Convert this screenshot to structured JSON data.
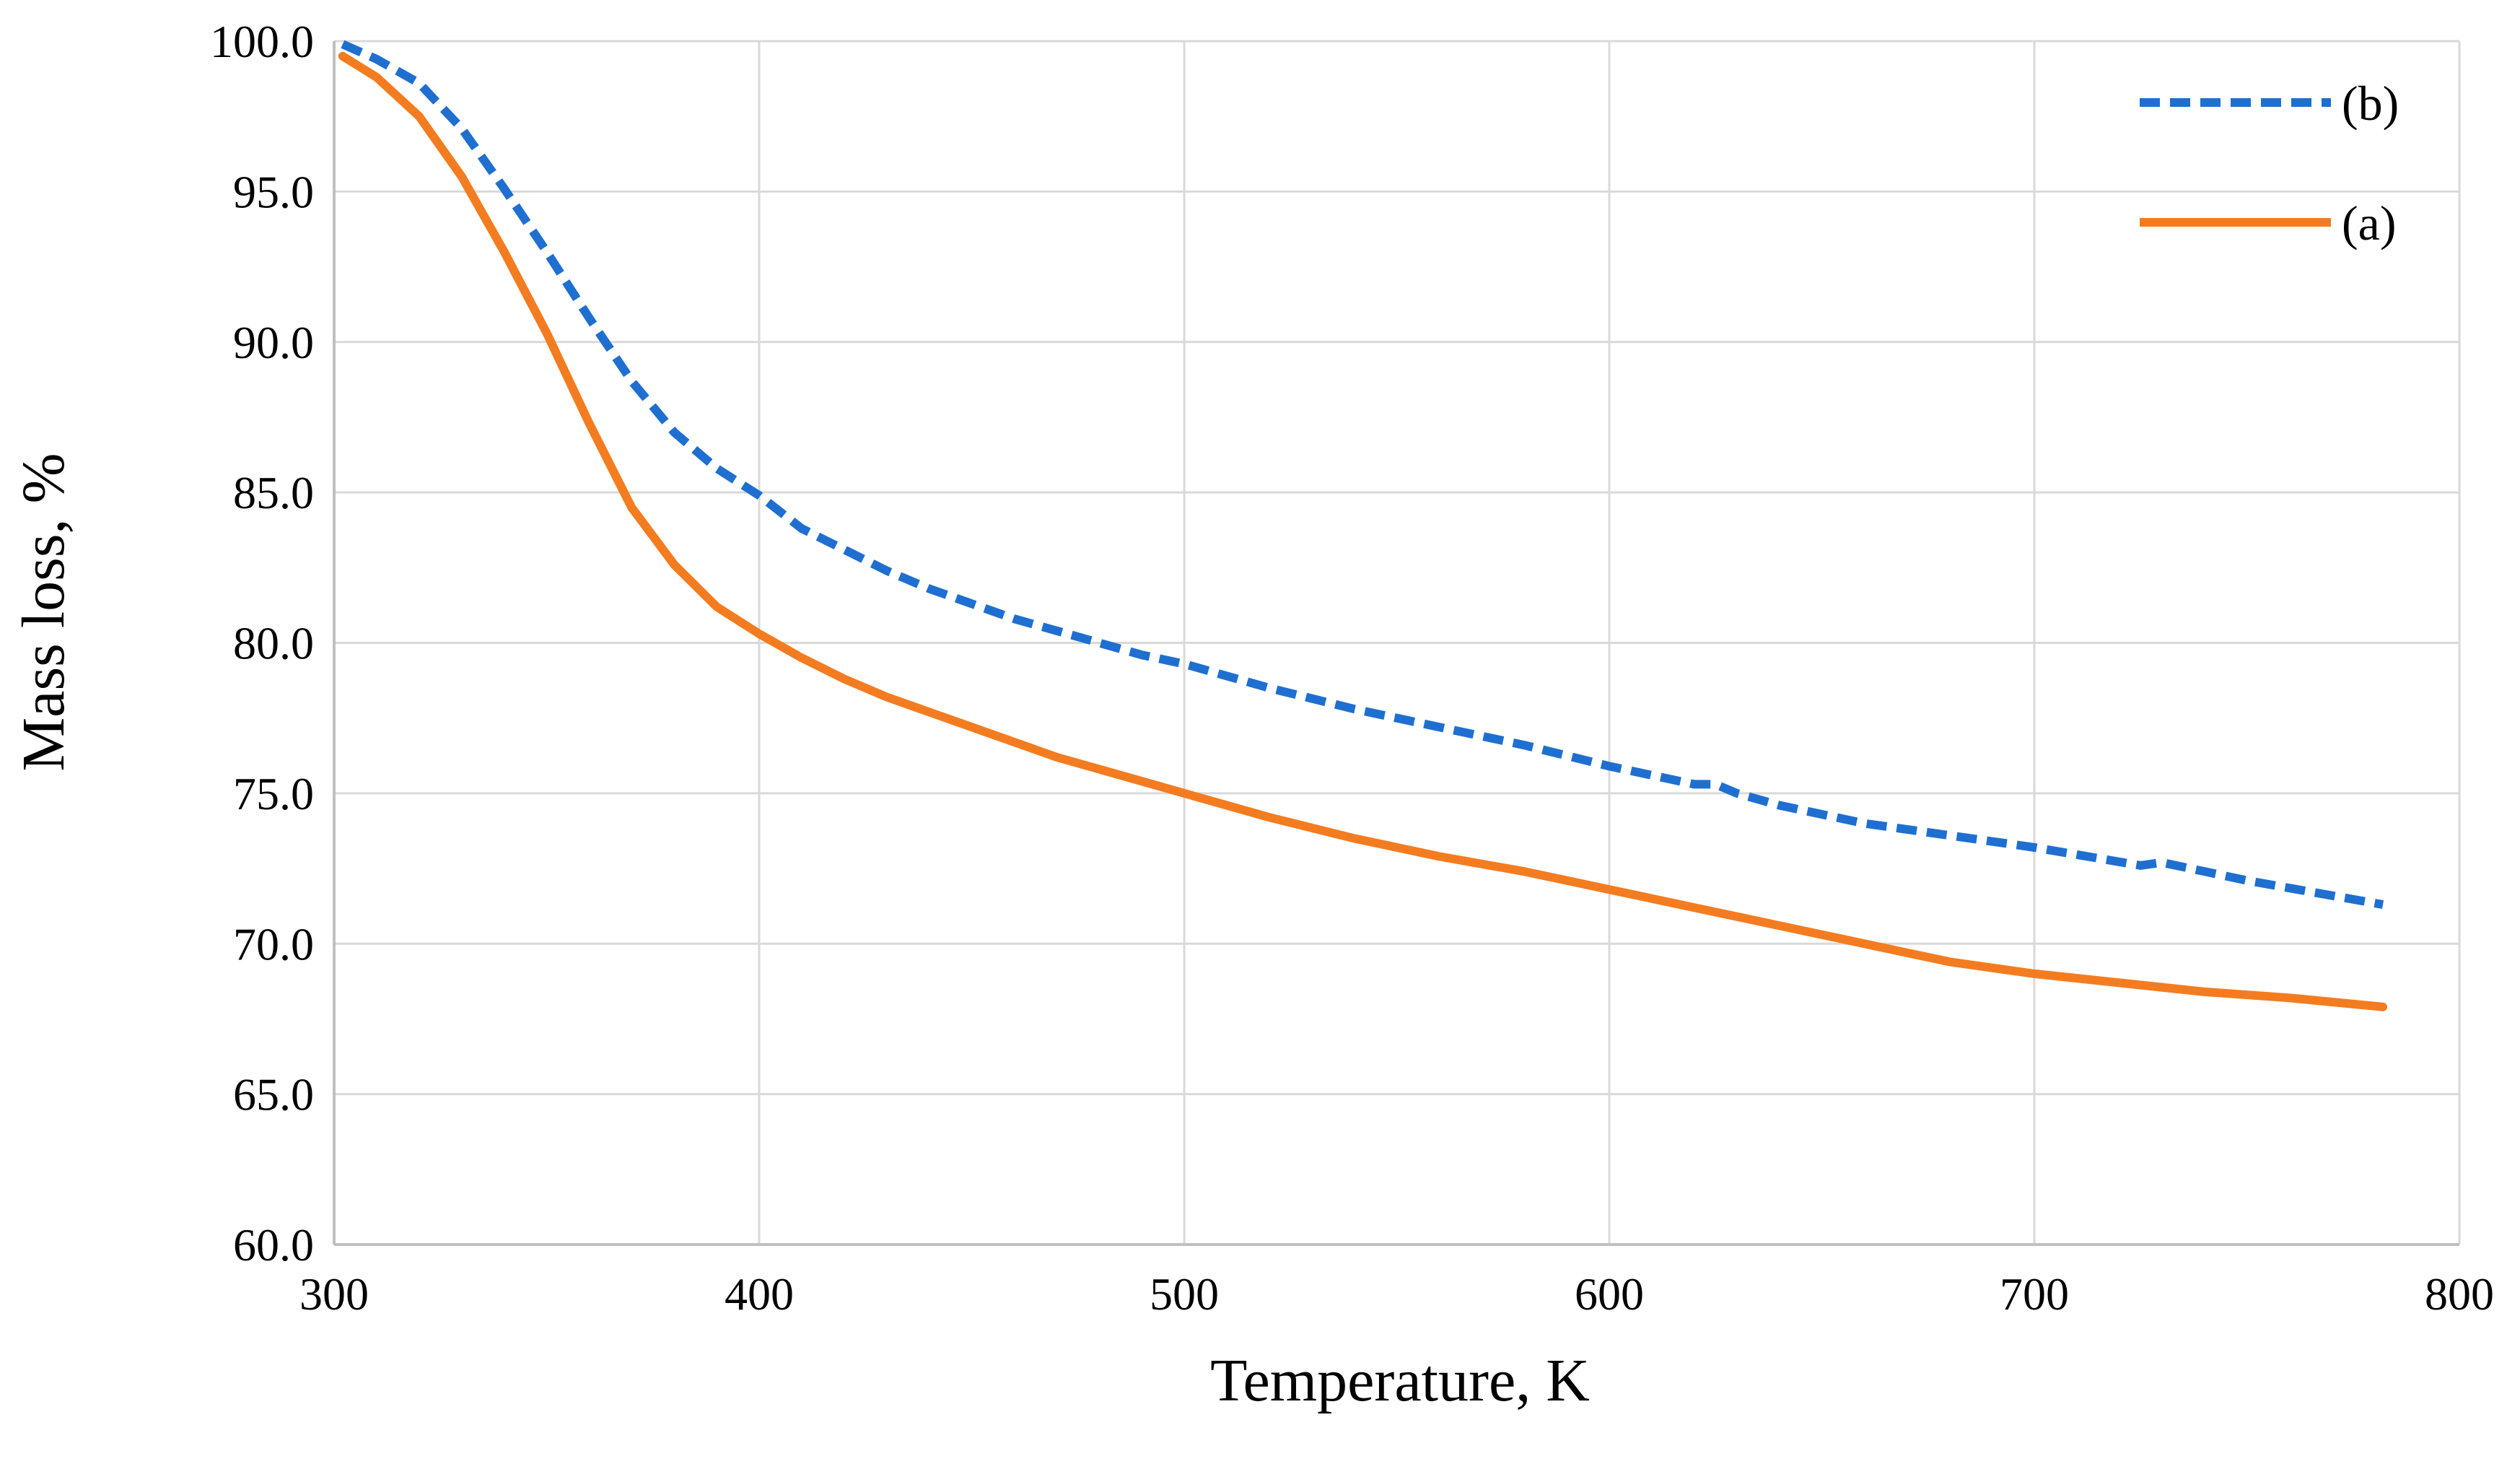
{
  "chart_data": {
    "type": "line",
    "title": "",
    "xlabel": "Temperature, K",
    "ylabel": "Mass loss, %",
    "xlim": [
      300,
      800
    ],
    "ylim": [
      60,
      100
    ],
    "x_ticks": [
      300,
      400,
      500,
      600,
      700,
      800
    ],
    "y_ticks": [
      "60.0",
      "65.0",
      "70.0",
      "75.0",
      "80.0",
      "85.0",
      "90.0",
      "95.0",
      "100.0"
    ],
    "grid": true,
    "legend_position": "top-right",
    "series": [
      {
        "name": "(b)",
        "style": "dashed",
        "color": "#1f6fd1",
        "x": [
          302,
          310,
          320,
          330,
          340,
          350,
          360,
          370,
          380,
          390,
          400,
          410,
          420,
          430,
          440,
          450,
          460,
          470,
          480,
          490,
          500,
          520,
          540,
          560,
          580,
          600,
          620,
          625,
          630,
          640,
          660,
          680,
          700,
          725,
          730,
          750,
          770,
          782
        ],
        "y": [
          99.9,
          99.4,
          98.6,
          97.1,
          95.1,
          93.0,
          90.8,
          88.7,
          87.0,
          85.8,
          84.9,
          83.8,
          83.1,
          82.4,
          81.8,
          81.3,
          80.8,
          80.4,
          80.0,
          79.6,
          79.3,
          78.5,
          77.8,
          77.2,
          76.6,
          75.9,
          75.3,
          75.3,
          75.0,
          74.6,
          74.0,
          73.6,
          73.2,
          72.6,
          72.7,
          72.1,
          71.6,
          71.3
        ]
      },
      {
        "name": "(a)",
        "style": "solid",
        "color": "#f47c20",
        "x": [
          302,
          310,
          320,
          330,
          340,
          350,
          360,
          370,
          380,
          390,
          400,
          410,
          420,
          430,
          440,
          450,
          460,
          470,
          480,
          490,
          500,
          520,
          540,
          560,
          580,
          600,
          620,
          640,
          660,
          680,
          700,
          720,
          740,
          760,
          782
        ],
        "y": [
          99.5,
          98.8,
          97.5,
          95.5,
          93.0,
          90.3,
          87.3,
          84.5,
          82.6,
          81.2,
          80.3,
          79.5,
          78.8,
          78.2,
          77.7,
          77.2,
          76.7,
          76.2,
          75.8,
          75.4,
          75.0,
          74.2,
          73.5,
          72.9,
          72.4,
          71.8,
          71.2,
          70.6,
          70.0,
          69.4,
          69.0,
          68.7,
          68.4,
          68.2,
          67.9
        ]
      }
    ]
  }
}
